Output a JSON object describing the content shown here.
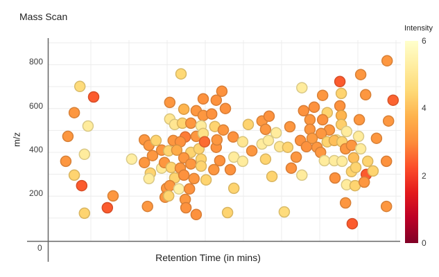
{
  "title": "Mass Scan",
  "axes": {
    "y_label": "m/z",
    "x_label": "Retention Time (in mins)",
    "y_tick_values": [
      800,
      600,
      400,
      200
    ],
    "origin_tick": "0"
  },
  "colorbar": {
    "label": "Intensity",
    "tick_values": [
      6,
      4,
      2,
      0
    ],
    "range": [
      0,
      6
    ]
  },
  "colors": {
    "background": "#ffffff",
    "axis_line": "#666666",
    "gridline": "#ececec",
    "title_text": "#1f1f1f",
    "tick_text": "#3c3c3c",
    "colormap_low_to_high": [
      "#800026",
      "#bd0026",
      "#e31a1c",
      "#fc4e2a",
      "#fd8d3c",
      "#feb24c",
      "#fed976",
      "#ffeda0",
      "#ffffcc"
    ]
  },
  "chart_data": {
    "type": "scatter",
    "title": "Mass Scan",
    "xlabel": "Retention Time (in mins)",
    "ylabel": "m/z",
    "xlim": [
      0,
      10
    ],
    "ylim": [
      0,
      880
    ],
    "grid": true,
    "legend": {
      "type": "colorbar",
      "label": "Intensity",
      "range": [
        0,
        6
      ],
      "position": "right"
    },
    "columns": [
      "retention_time_min",
      "mz",
      "intensity"
    ],
    "points": [
      [
        0.89,
        701,
        4.6
      ],
      [
        1.28,
        653,
        2.4
      ],
      [
        0.73,
        581,
        3.2
      ],
      [
        1.12,
        520,
        5.2
      ],
      [
        0.55,
        473,
        3.2
      ],
      [
        0.49,
        359,
        3.2
      ],
      [
        1.02,
        391,
        5.2
      ],
      [
        0.73,
        296,
        4.4
      ],
      [
        0.94,
        248,
        2.4
      ],
      [
        1.02,
        122,
        4.4
      ],
      [
        1.83,
        201,
        3.2
      ],
      [
        1.67,
        147,
        2.4
      ],
      [
        2.36,
        369,
        5.3
      ],
      [
        2.72,
        457,
        3.2
      ],
      [
        2.72,
        353,
        3.2
      ],
      [
        2.81,
        153,
        3.2
      ],
      [
        2.85,
        432,
        3.2
      ],
      [
        3.05,
        454,
        4.4
      ],
      [
        2.95,
        385,
        3.2
      ],
      [
        3.21,
        410,
        3.2
      ],
      [
        2.89,
        305,
        4.4
      ],
      [
        2.85,
        280,
        5.2
      ],
      [
        3.21,
        328,
        5.2
      ],
      [
        3.29,
        353,
        3.2
      ],
      [
        3.35,
        236,
        3.2
      ],
      [
        3.31,
        195,
        3.2
      ],
      [
        3.76,
        758,
        4.5
      ],
      [
        3.44,
        628,
        3.2
      ],
      [
        3.84,
        597,
        3.8
      ],
      [
        4.19,
        590,
        3.2
      ],
      [
        4.39,
        644,
        3.1
      ],
      [
        4.76,
        638,
        3.1
      ],
      [
        4.92,
        679,
        3.1
      ],
      [
        5.02,
        600,
        3.1
      ],
      [
        4.39,
        568,
        3.2
      ],
      [
        4.63,
        575,
        3.1
      ],
      [
        3.44,
        552,
        5.0
      ],
      [
        3.58,
        527,
        5.0
      ],
      [
        3.8,
        533,
        4.4
      ],
      [
        4.04,
        533,
        3.2
      ],
      [
        4.33,
        521,
        5.2
      ],
      [
        4.72,
        518,
        4.4
      ],
      [
        4.96,
        502,
        3.2
      ],
      [
        3.88,
        470,
        2.8
      ],
      [
        4.19,
        473,
        3.2
      ],
      [
        4.39,
        486,
        4.8
      ],
      [
        5.24,
        470,
        3.1
      ],
      [
        5.67,
        527,
        4.4
      ],
      [
        6.06,
        543,
        3.2
      ],
      [
        6.26,
        565,
        3.1
      ],
      [
        6.16,
        505,
        3.2
      ],
      [
        6.46,
        489,
        5.2
      ],
      [
        9.61,
        818,
        3.2
      ],
      [
        8.86,
        755,
        3.2
      ],
      [
        8.27,
        723,
        2.4
      ],
      [
        7.19,
        695,
        5.2
      ],
      [
        8.31,
        669,
        4.4
      ],
      [
        7.78,
        660,
        3.2
      ],
      [
        9.0,
        663,
        3.2
      ],
      [
        9.78,
        638,
        2.5
      ],
      [
        7.24,
        590,
        3.1
      ],
      [
        7.54,
        606,
        3.1
      ],
      [
        7.91,
        581,
        4.4
      ],
      [
        8.27,
        612,
        3.1
      ],
      [
        8.31,
        568,
        3.8
      ],
      [
        7.42,
        549,
        3.2
      ],
      [
        7.78,
        549,
        3.1
      ],
      [
        8.31,
        527,
        4.3
      ],
      [
        8.82,
        549,
        3.2
      ],
      [
        9.65,
        543,
        3.2
      ],
      [
        6.85,
        517,
        3.2
      ],
      [
        7.42,
        505,
        3.2
      ],
      [
        7.97,
        502,
        3.2
      ],
      [
        8.46,
        495,
        5.2
      ],
      [
        7.74,
        486,
        3.2
      ],
      [
        8.17,
        457,
        5.2
      ],
      [
        8.8,
        473,
        5.2
      ],
      [
        9.31,
        464,
        3.2
      ],
      [
        3.54,
        454,
        3.2
      ],
      [
        3.74,
        448,
        3.1
      ],
      [
        3.41,
        407,
        4.4
      ],
      [
        3.64,
        410,
        3.6
      ],
      [
        4.04,
        400,
        4.4
      ],
      [
        4.27,
        416,
        4.4
      ],
      [
        4.43,
        448,
        2.6
      ],
      [
        4.76,
        423,
        3.1
      ],
      [
        4.78,
        457,
        3.2
      ],
      [
        5.51,
        448,
        5.0
      ],
      [
        5.77,
        407,
        3.2
      ],
      [
        6.06,
        438,
        5.2
      ],
      [
        6.24,
        454,
        5.2
      ],
      [
        6.56,
        426,
        5.0
      ],
      [
        3.84,
        375,
        3.2
      ],
      [
        4.33,
        369,
        4.4
      ],
      [
        4.86,
        362,
        3.1
      ],
      [
        5.26,
        378,
        5.2
      ],
      [
        5.51,
        359,
        5.2
      ],
      [
        6.16,
        369,
        4.4
      ],
      [
        3.48,
        331,
        4.4
      ],
      [
        3.74,
        328,
        3.2
      ],
      [
        4.04,
        347,
        3.2
      ],
      [
        4.33,
        337,
        4.4
      ],
      [
        4.69,
        321,
        3.2
      ],
      [
        5.16,
        321,
        3.1
      ],
      [
        3.58,
        283,
        4.4
      ],
      [
        3.84,
        296,
        3.1
      ],
      [
        4.13,
        280,
        3.2
      ],
      [
        4.47,
        274,
        4.4
      ],
      [
        6.34,
        290,
        4.4
      ],
      [
        3.44,
        248,
        3.2
      ],
      [
        3.7,
        233,
        5.4
      ],
      [
        4.0,
        233,
        3.1
      ],
      [
        5.26,
        236,
        4.4
      ],
      [
        3.41,
        201,
        4.4
      ],
      [
        3.88,
        185,
        3.2
      ],
      [
        3.9,
        147,
        3.1
      ],
      [
        4.19,
        116,
        3.1
      ],
      [
        5.08,
        125,
        4.4
      ],
      [
        6.69,
        128,
        4.6
      ],
      [
        6.79,
        423,
        4.4
      ],
      [
        7.15,
        454,
        3.1
      ],
      [
        7.32,
        426,
        3.1
      ],
      [
        7.62,
        423,
        3.2
      ],
      [
        7.72,
        400,
        3.2
      ],
      [
        7.91,
        448,
        4.4
      ],
      [
        8.11,
        454,
        4.0
      ],
      [
        8.33,
        448,
        4.4
      ],
      [
        8.43,
        416,
        3.2
      ],
      [
        8.6,
        432,
        3.2
      ],
      [
        8.86,
        416,
        5.2
      ],
      [
        7.03,
        378,
        3.2
      ],
      [
        7.83,
        362,
        5.2
      ],
      [
        8.11,
        362,
        5.2
      ],
      [
        8.33,
        359,
        5.2
      ],
      [
        8.66,
        375,
        4.0
      ],
      [
        9.06,
        359,
        4.4
      ],
      [
        9.59,
        359,
        3.1
      ],
      [
        6.89,
        328,
        3.1
      ],
      [
        7.19,
        296,
        5.2
      ],
      [
        8.13,
        283,
        3.1
      ],
      [
        8.6,
        312,
        4.4
      ],
      [
        8.72,
        331,
        4.4
      ],
      [
        9.02,
        299,
        2.4
      ],
      [
        9.21,
        315,
        4.4
      ],
      [
        8.46,
        252,
        5.2
      ],
      [
        8.7,
        248,
        4.4
      ],
      [
        8.96,
        264,
        3.2
      ],
      [
        8.43,
        169,
        3.2
      ],
      [
        9.59,
        153,
        3.2
      ],
      [
        8.62,
        74,
        2.4
      ],
      [
        7.48,
        464,
        3.3
      ]
    ]
  }
}
